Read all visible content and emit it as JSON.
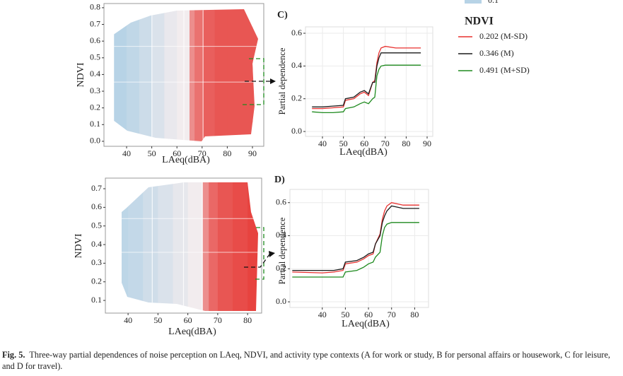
{
  "chart_data": [
    {
      "type": "heatmap",
      "x_label": "LAeq(dBA)",
      "y_label": "NDVI",
      "xlim": [
        31,
        94.5
      ],
      "xticks": [
        40,
        50,
        60,
        70,
        80,
        90
      ],
      "ylim": [
        -0.03,
        0.825
      ],
      "yticks": [
        {
          "value": 0,
          "label": "0.0"
        },
        0.1,
        0.2,
        0.3,
        0.4,
        0.5,
        0.6,
        0.7,
        0.8
      ],
      "zlim": [
        0.1,
        0.5
      ],
      "x_edges": [
        35,
        40,
        45,
        50,
        55,
        60,
        65,
        67,
        70,
        75,
        80,
        85,
        90,
        93
      ],
      "values": [
        0.1,
        0.13,
        0.17,
        0.22,
        0.27,
        0.3,
        0.4,
        0.43,
        0.45,
        0.46,
        0.46,
        0.46,
        0.46
      ]
    },
    {
      "type": "heatmap",
      "x_label": "LAeq(dBA)",
      "y_label": "NDVI",
      "xlim": [
        32.4,
        84.7
      ],
      "xticks": [
        40,
        50,
        60,
        70,
        80
      ],
      "ylim": [
        0.032,
        0.757
      ],
      "yticks": [
        0.1,
        0.2,
        0.3,
        0.4,
        0.5,
        0.6,
        0.7
      ],
      "zlim": [
        0.1,
        0.5
      ],
      "x_edges": [
        35,
        40,
        45,
        50,
        55,
        60,
        65,
        67,
        70,
        75,
        80,
        84
      ],
      "values": [
        0.12,
        0.14,
        0.18,
        0.22,
        0.26,
        0.3,
        0.4,
        0.44,
        0.46,
        0.47,
        0.48
      ]
    },
    {
      "type": "line",
      "panel": "C)",
      "x_label": "LAeq(dBA)",
      "y_label": "Partial dependence",
      "grid": true,
      "xlim": [
        31.9,
        92.7
      ],
      "xticks": [
        40,
        50,
        60,
        70,
        80,
        90
      ],
      "ylim": [
        -0.03,
        0.639
      ],
      "yticks": [
        {
          "value": 0,
          "label": "0.0"
        },
        0.2,
        0.4,
        0.6
      ],
      "x": [
        35,
        40,
        45,
        50,
        51,
        55,
        58,
        60,
        62,
        64,
        65,
        66,
        67,
        68,
        70,
        75,
        80,
        85,
        87
      ],
      "series": [
        {
          "name": "0.202 (M-SD)",
          "color": "#e8312f",
          "values": [
            0.14,
            0.14,
            0.145,
            0.15,
            0.19,
            0.2,
            0.23,
            0.24,
            0.22,
            0.3,
            0.31,
            0.42,
            0.48,
            0.51,
            0.52,
            0.51,
            0.51,
            0.51,
            0.51
          ]
        },
        {
          "name": "0.346 (M)",
          "color": "#1a1a1a",
          "values": [
            0.15,
            0.15,
            0.155,
            0.16,
            0.2,
            0.21,
            0.24,
            0.25,
            0.23,
            0.3,
            0.3,
            0.4,
            0.45,
            0.48,
            0.48,
            0.48,
            0.48,
            0.48,
            0.48
          ]
        },
        {
          "name": "0.491 (M+SD)",
          "color": "#1e8a1e",
          "values": [
            0.12,
            0.115,
            0.115,
            0.12,
            0.14,
            0.15,
            0.17,
            0.18,
            0.17,
            0.2,
            0.21,
            0.34,
            0.38,
            0.4,
            0.405,
            0.405,
            0.405,
            0.405,
            0.405
          ]
        }
      ],
      "legend_title": "NDVI"
    },
    {
      "type": "line",
      "panel": "D)",
      "x_label": "LAeq(dBA)",
      "y_label": "Partial dependence",
      "grid": true,
      "xlim": [
        26,
        86
      ],
      "xticks": [
        40,
        50,
        60,
        70,
        80
      ],
      "ylim": [
        -0.034,
        0.68
      ],
      "yticks": [
        {
          "value": 0,
          "label": "0.0"
        },
        0.2,
        0.4,
        0.6
      ],
      "x": [
        27,
        40,
        45,
        49,
        50,
        55,
        58,
        60,
        62,
        63,
        65,
        66,
        67,
        68,
        70,
        75,
        80,
        82
      ],
      "series": [
        {
          "name": "0.202 (M-SD)",
          "color": "#e8312f",
          "values": [
            0.18,
            0.175,
            0.18,
            0.19,
            0.23,
            0.24,
            0.26,
            0.28,
            0.29,
            0.35,
            0.41,
            0.5,
            0.55,
            0.58,
            0.6,
            0.585,
            0.585,
            0.585
          ]
        },
        {
          "name": "0.346 (M)",
          "color": "#1a1a1a",
          "values": [
            0.19,
            0.19,
            0.19,
            0.2,
            0.24,
            0.25,
            0.27,
            0.29,
            0.3,
            0.35,
            0.4,
            0.48,
            0.52,
            0.55,
            0.58,
            0.565,
            0.565,
            0.565
          ]
        },
        {
          "name": "0.491 (M+SD)",
          "color": "#1e8a1e",
          "values": [
            0.15,
            0.15,
            0.15,
            0.15,
            0.18,
            0.19,
            0.21,
            0.23,
            0.24,
            0.27,
            0.3,
            0.4,
            0.45,
            0.47,
            0.48,
            0.48,
            0.48,
            0.48
          ]
        }
      ]
    }
  ],
  "colorbar": {
    "ticks": [
      0.1
    ]
  },
  "caption": {
    "label": "Fig. 5.",
    "text": "Three-way partial dependences of noise perception on LAeq, NDVI, and activity type contexts (A for work or study, B for personal affairs or housework, C for leisure, and D for travel)."
  }
}
